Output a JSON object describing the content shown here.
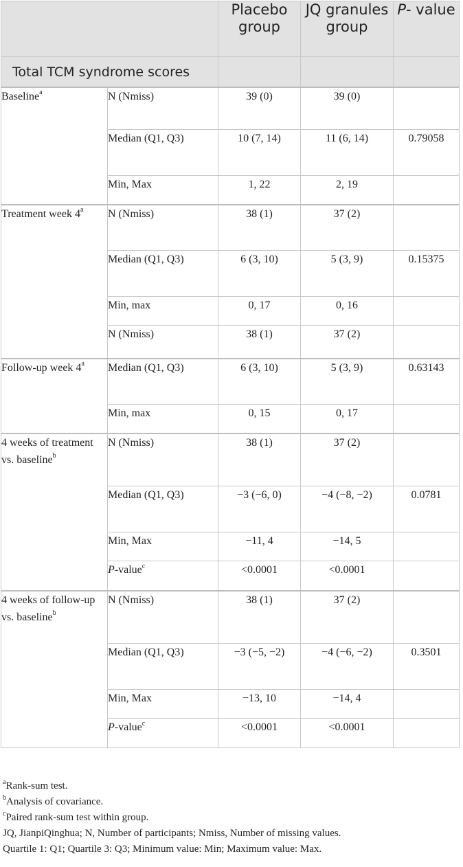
{
  "header": {
    "col1": "",
    "col2": "Placebo group",
    "col3": "JQ granules group",
    "col4_italic": "P",
    "col4_rest": "- value"
  },
  "section_title": "Total TCM syndrome scores",
  "groups": [
    {
      "label": "Baseline",
      "sup": "a",
      "rows": [
        {
          "label": "N (Nmiss)",
          "placebo": "39 (0)",
          "jq": "39 (0)",
          "p": ""
        },
        {
          "label": "Median (Q1, Q3)",
          "placebo": "10 (7, 14)",
          "jq": "11 (6, 14)",
          "p": "0.79058"
        },
        {
          "label": "Min, Max",
          "placebo": "1, 22",
          "jq": "2, 19",
          "p": ""
        }
      ]
    },
    {
      "label": "Treatment week 4",
      "sup": "a",
      "rows": [
        {
          "label": "N (Nmiss)",
          "placebo": "38 (1)",
          "jq": "37 (2)",
          "p": ""
        },
        {
          "label": "Median (Q1, Q3)",
          "placebo": "6 (3, 10)",
          "jq": "5 (3, 9)",
          "p": "0.15375"
        },
        {
          "label": "Min, max",
          "placebo": "0, 17",
          "jq": "0, 16",
          "p": ""
        },
        {
          "label": "N (Nmiss)",
          "placebo": "38 (1)",
          "jq": "37 (2)",
          "p": ""
        }
      ]
    },
    {
      "label": "Follow-up week 4",
      "sup": "a",
      "rows": [
        {
          "label": "Median (Q1, Q3)",
          "placebo": "6 (3, 10)",
          "jq": "5 (3, 9)",
          "p": "0.63143"
        },
        {
          "label": "Min, max",
          "placebo": "0, 15",
          "jq": "0, 17",
          "p": ""
        }
      ]
    },
    {
      "label": "4 weeks of treatment vs. baseline",
      "sup": "b",
      "rows": [
        {
          "label": "N (Nmiss)",
          "placebo": "38 (1)",
          "jq": "37 (2)",
          "p": ""
        },
        {
          "label": "Median (Q1, Q3)",
          "placebo": "−3 (−6, 0)",
          "jq": "−4 (−8, −2)",
          "p": "0.0781"
        },
        {
          "label": "Min, Max",
          "placebo": "−11, 4",
          "jq": "−14, 5",
          "p": ""
        },
        {
          "label": "P-value",
          "sup": "c",
          "placebo": "<0.0001",
          "jq": "<0.0001",
          "p": ""
        }
      ]
    },
    {
      "label": "4 weeks of follow-up vs. baseline",
      "sup": "b",
      "rows": [
        {
          "label": "N (Nmiss)",
          "placebo": "38 (1)",
          "jq": "37 (2)",
          "p": ""
        },
        {
          "label": "Median (Q1, Q3)",
          "placebo": "−3 (−5, −2)",
          "jq": "−4 (−6, −2)",
          "p": "0.3501"
        },
        {
          "label": "Min, Max",
          "placebo": "−13, 10",
          "jq": "−14, 4",
          "p": ""
        },
        {
          "label": "P-value",
          "sup": "c",
          "placebo": "<0.0001",
          "jq": "<0.0001",
          "p": ""
        }
      ]
    }
  ],
  "footnotes": [
    {
      "sup": "a",
      "text": "Rank-sum test."
    },
    {
      "sup": "b",
      "text": "Analysis of covariance."
    },
    {
      "sup": "c",
      "text": "Paired rank-sum test within group."
    },
    {
      "sup": "",
      "text": "JQ, JianpiQinghua; N, Number of participants; Nmiss, Number of missing values."
    },
    {
      "sup": "",
      "text": "Quartile 1: Q1; Quartile 3: Q3; Minimum value: Min; Maximum value: Max."
    }
  ]
}
